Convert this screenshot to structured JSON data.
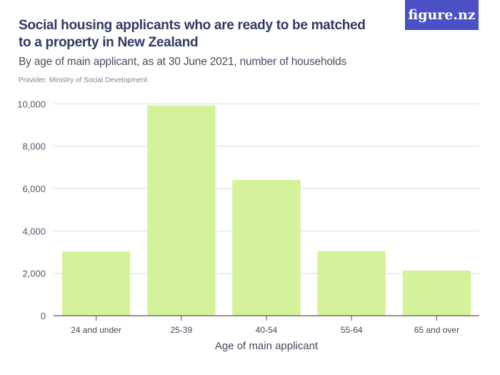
{
  "header": {
    "title": "Social housing applicants who are ready to be matched to a property in New Zealand",
    "subtitle": "By age of main applicant, as at 30 June 2021, number of households",
    "provider": "Provider: Ministry of Social Development",
    "logo": "figure.nz"
  },
  "chart_data": {
    "type": "bar",
    "title": "Social housing applicants who are ready to be matched to a property in New Zealand",
    "xlabel": "Age of main applicant",
    "ylabel": "",
    "categories": [
      "24 and under",
      "25-39",
      "40-54",
      "55-64",
      "65 and over"
    ],
    "values": [
      3030,
      9920,
      6410,
      3040,
      2130
    ],
    "ylim": [
      0,
      10000
    ],
    "yticks": [
      0,
      2000,
      4000,
      6000,
      8000,
      10000
    ],
    "ytick_labels": [
      "0",
      "2,000",
      "4,000",
      "6,000",
      "8,000",
      "10,000"
    ],
    "grid": true,
    "bar_color": "#d4f29a",
    "grid_color": "#e3e3e3"
  }
}
